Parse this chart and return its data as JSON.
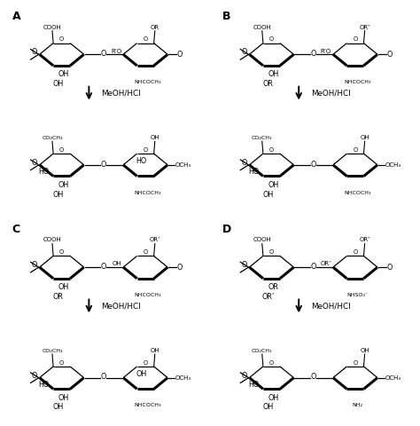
{
  "background": "#ffffff",
  "panels": [
    "A",
    "B",
    "C",
    "D"
  ],
  "arrow_label": "MeOH/HCl",
  "configs": {
    "A": {
      "top_left": {
        "label1": "COOH",
        "label2": "OH",
        "label3": "OH",
        "left_bond": "O"
      },
      "top_right": {
        "label_top": "OR",
        "label_mid": "R’O",
        "label_bot": "NHCOCH₃",
        "right_end": "O"
      },
      "bot_left": {
        "label1": "CO₂CH₃",
        "label2": "OH",
        "label3": "OH",
        "left_bond": "O"
      },
      "bot_right": {
        "label_top": "OH",
        "label_mid": "HO",
        "label_bot": "NHCOCH₃",
        "right_end": "OCH₃"
      }
    },
    "B": {
      "top_left": {
        "label1": "COOH",
        "label2": "OH",
        "label3": "OR",
        "left_bond": "O"
      },
      "top_right": {
        "label_top": "OR″",
        "label_mid": "R’O",
        "label_bot": "NHCOCH₃",
        "right_end": "O"
      },
      "bot_left": {
        "label1": "CO₂CH₃",
        "label2": "OH",
        "label3": "OH",
        "left_bond": "O"
      },
      "bot_right": {
        "label_top": "OH",
        "label_mid": "",
        "label_bot": "NHCOCH₃",
        "right_end": "OCH₃"
      }
    },
    "C": {
      "top_left": {
        "label1": "COOH",
        "label2": "OH",
        "label3": "OR",
        "left_bond": "O"
      },
      "top_right": {
        "label_top": "OR’",
        "label_mid": "OH",
        "label_bot": "NHCOCH₃",
        "right_end": "O"
      },
      "bot_left": {
        "label1": "CO₂CH₃",
        "label2": "OH",
        "label3": "OH",
        "left_bond": "O"
      },
      "bot_right": {
        "label_top": "OH",
        "label_mid": "OH",
        "label_bot": "NHCOCH₃",
        "right_end": "OCH₃"
      }
    },
    "D": {
      "top_left": {
        "label1": "COOH",
        "label2": "OR",
        "label3": "OR’",
        "left_bond": "O"
      },
      "top_right": {
        "label_top": "OR″",
        "label_mid": "OR’",
        "label_bot": "NHSO₃⁻",
        "right_end": "O"
      },
      "bot_left": {
        "label1": "CO₂CH₃",
        "label2": "OH",
        "label3": "OH",
        "left_bond": "O"
      },
      "bot_right": {
        "label_top": "OH",
        "label_mid": "",
        "label_bot": "NH₂",
        "right_end": "OCH₃"
      }
    }
  }
}
